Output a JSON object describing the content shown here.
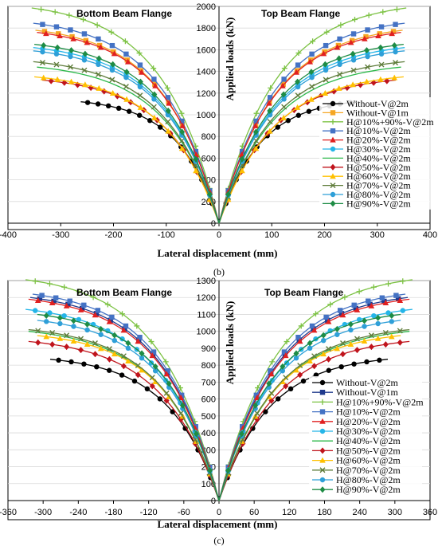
{
  "chart_data": [
    {
      "type": "line",
      "caption": "(b)",
      "xlabel": "Lateral displacement (mm)",
      "ylabel": "Applied loads (kN)",
      "xlim": [
        -400,
        400
      ],
      "ylim": [
        0,
        2000
      ],
      "xticks": [
        -400,
        -300,
        -200,
        -100,
        0,
        100,
        200,
        300,
        400
      ],
      "yticks": [
        0,
        200,
        400,
        600,
        800,
        1000,
        1200,
        1400,
        1600,
        1800,
        2000
      ],
      "annotations": [
        "Bottom Beam Flange",
        "Top Beam Flange"
      ],
      "series": [
        {
          "name": "Without-V@2m",
          "color": "#000000",
          "marker": "circle",
          "xmax": 262,
          "peak": 1120
        },
        {
          "name": "Without-V@1m",
          "color": "#F5A623",
          "marker": "square",
          "xmax": 348,
          "peak": 1780
        },
        {
          "name": "H@10%+90%-V@2m",
          "color": "#7CC243",
          "marker": "plus",
          "xmax": 355,
          "peak": 1985
        },
        {
          "name": "H@10%-V@2m",
          "color": "#4472C4",
          "marker": "square",
          "xmax": 352,
          "peak": 1845
        },
        {
          "name": "H@20%-V@2m",
          "color": "#E02020",
          "marker": "triangle",
          "xmax": 345,
          "peak": 1760
        },
        {
          "name": "H@30%-V@2m",
          "color": "#25B5E8",
          "marker": "circle",
          "xmax": 352,
          "peak": 1620
        },
        {
          "name": "H@40%-V@2m",
          "color": "#2DB84B",
          "marker": "none",
          "xmax": 345,
          "peak": 1440
        },
        {
          "name": "H@50%-V@2m",
          "color": "#C0141C",
          "marker": "diamond",
          "xmax": 335,
          "peak": 1320
        },
        {
          "name": "H@60%-V@2m",
          "color": "#FFC000",
          "marker": "triangle",
          "xmax": 350,
          "peak": 1350
        },
        {
          "name": "H@70%-V@2m",
          "color": "#5E7C3A",
          "marker": "cross",
          "xmax": 352,
          "peak": 1490
        },
        {
          "name": "H@80%-V@2m",
          "color": "#2E9FD8",
          "marker": "circle",
          "xmax": 352,
          "peak": 1590
        },
        {
          "name": "H@90%-V@2m",
          "color": "#1E8C45",
          "marker": "diamond",
          "xmax": 350,
          "peak": 1650
        }
      ]
    },
    {
      "type": "line",
      "caption": "(c)",
      "xlabel": "Lateral displacement (mm)",
      "ylabel": "Applied loads (kN)",
      "xlim": [
        -360,
        360
      ],
      "ylim": [
        0,
        1300
      ],
      "xticks": [
        -360,
        -300,
        -240,
        -180,
        -120,
        -60,
        0,
        60,
        120,
        180,
        240,
        300,
        360
      ],
      "yticks": [
        0,
        100,
        200,
        300,
        400,
        500,
        600,
        700,
        800,
        900,
        1000,
        1100,
        1200,
        1300
      ],
      "annotations": [
        "Bottom Beam Flange",
        "Top Beam Flange"
      ],
      "series": [
        {
          "name": "Without-V@2m",
          "color": "#000000",
          "marker": "circle",
          "xmax": 288,
          "peak": 835
        },
        {
          "name": "Without-V@1m",
          "color": "#1F3A8C",
          "marker": "square",
          "xmax": 322,
          "peak": 1200
        },
        {
          "name": "H@10%+90%-V@2m",
          "color": "#7CC243",
          "marker": "plus",
          "xmax": 330,
          "peak": 1305
        },
        {
          "name": "H@10%-V@2m",
          "color": "#4472C4",
          "marker": "square",
          "xmax": 318,
          "peak": 1220
        },
        {
          "name": "H@20%-V@2m",
          "color": "#E02020",
          "marker": "triangle",
          "xmax": 325,
          "peak": 1190
        },
        {
          "name": "H@30%-V@2m",
          "color": "#25B5E8",
          "marker": "circle",
          "xmax": 330,
          "peak": 1130
        },
        {
          "name": "H@40%-V@2m",
          "color": "#2DB84B",
          "marker": "none",
          "xmax": 325,
          "peak": 1000
        },
        {
          "name": "H@50%-V@2m",
          "color": "#C0141C",
          "marker": "diamond",
          "xmax": 325,
          "peak": 940
        },
        {
          "name": "H@60%-V@2m",
          "color": "#FFC000",
          "marker": "triangle",
          "xmax": 310,
          "peak": 975
        },
        {
          "name": "H@70%-V@2m",
          "color": "#5E7C3A",
          "marker": "cross",
          "xmax": 325,
          "peak": 1010
        },
        {
          "name": "H@80%-V@2m",
          "color": "#2E9FD8",
          "marker": "circle",
          "xmax": 310,
          "peak": 1065
        },
        {
          "name": "H@90%-V@2m",
          "color": "#1E8C45",
          "marker": "diamond",
          "xmax": 310,
          "peak": 1100
        }
      ]
    }
  ]
}
